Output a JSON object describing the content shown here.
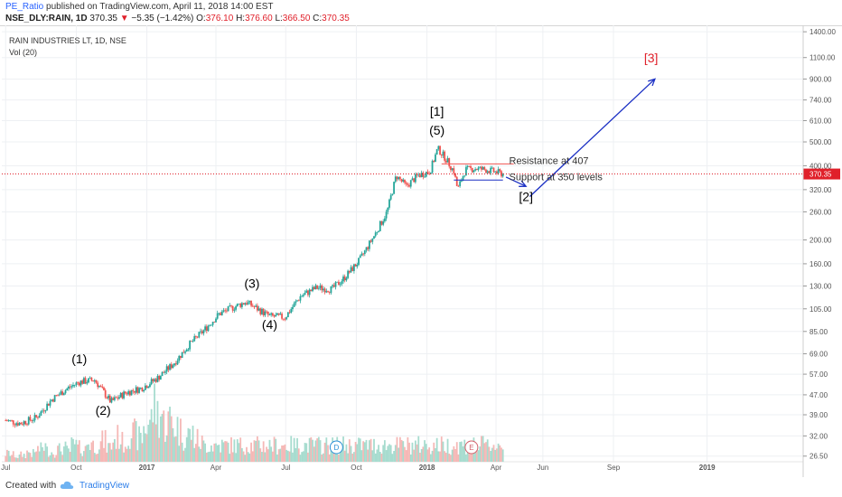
{
  "header": {
    "author": "PE_Ratio",
    "published": "published on TradingView.com, April 11, 2018 14:00 EST",
    "symbol": "NSE_DLY:RAIN, 1D",
    "last": "370.35",
    "change": "−5.35 (−1.42%)",
    "o_label": "O:",
    "o_val": "376.10",
    "h_label": "H:",
    "h_val": "376.60",
    "l_label": "L:",
    "l_val": "366.50",
    "c_label": "C:",
    "c_val": "370.35"
  },
  "legend": {
    "name": "RAIN INDUSTRIES LT, 1D, NSE",
    "volume": "Vol (20)"
  },
  "footer": {
    "created": "Created with",
    "brand": "TradingView"
  },
  "colors": {
    "up": "#26a69a",
    "down": "#ef5350",
    "arrow": "#1a2fc4",
    "label3": "#e0202a",
    "resistance": "#ef5350",
    "support": "#1a2fc4"
  },
  "chart_data": {
    "type": "line",
    "scale": "log",
    "y_ticks": [
      "1400.00",
      "1100.00",
      "900.00",
      "740.00",
      "610.00",
      "500.00",
      "400.00",
      "320.00",
      "260.00",
      "200.00",
      "160.00",
      "130.00",
      "105.00",
      "85.00",
      "69.00",
      "57.00",
      "47.00",
      "39.00",
      "32.00",
      "26.50"
    ],
    "x_ticks": [
      "Jul",
      "Oct",
      "2017",
      "Apr",
      "Jul",
      "Oct",
      "2018",
      "Apr",
      "Jun",
      "Sep",
      "2019"
    ],
    "last_price_label": "370.35",
    "price_path": [
      [
        "2016-07-01",
        37
      ],
      [
        "2016-07-20",
        36
      ],
      [
        "2016-08-10",
        38
      ],
      [
        "2016-08-30",
        45
      ],
      [
        "2016-09-20",
        50
      ],
      [
        "2016-10-05",
        53
      ],
      [
        "2016-10-25",
        54
      ],
      [
        "2016-11-15",
        44
      ],
      [
        "2016-12-05",
        48
      ],
      [
        "2016-12-25",
        50
      ],
      [
        "2017-01-15",
        55
      ],
      [
        "2017-02-05",
        63
      ],
      [
        "2017-02-25",
        75
      ],
      [
        "2017-03-15",
        85
      ],
      [
        "2017-04-05",
        100
      ],
      [
        "2017-04-25",
        107
      ],
      [
        "2017-05-10",
        112
      ],
      [
        "2017-05-25",
        105
      ],
      [
        "2017-06-10",
        98
      ],
      [
        "2017-06-30",
        97
      ],
      [
        "2017-07-20",
        118
      ],
      [
        "2017-08-10",
        128
      ],
      [
        "2017-08-30",
        126
      ],
      [
        "2017-09-15",
        140
      ],
      [
        "2017-10-05",
        165
      ],
      [
        "2017-10-25",
        210
      ],
      [
        "2017-11-10",
        260
      ],
      [
        "2017-11-22",
        365
      ],
      [
        "2017-12-05",
        330
      ],
      [
        "2017-12-20",
        365
      ],
      [
        "2018-01-05",
        380
      ],
      [
        "2018-01-15",
        470
      ],
      [
        "2018-01-25",
        430
      ],
      [
        "2018-02-05",
        380
      ],
      [
        "2018-02-10",
        320
      ],
      [
        "2018-02-20",
        385
      ],
      [
        "2018-03-05",
        390
      ],
      [
        "2018-03-20",
        385
      ],
      [
        "2018-04-11",
        370
      ]
    ],
    "volume_profile": [
      6,
      5,
      4,
      5,
      7,
      6,
      9,
      11,
      8,
      7,
      9,
      10,
      8,
      12,
      10,
      9,
      14,
      12,
      13,
      15,
      11,
      16,
      18,
      14,
      22,
      20,
      17,
      25,
      30,
      40,
      35,
      28,
      30,
      26,
      22,
      18,
      20,
      16,
      14,
      12
    ],
    "annotations": [
      {
        "text": "(1)",
        "date": "2016-10-05",
        "price": 63,
        "color": "#000000"
      },
      {
        "text": "(2)",
        "date": "2016-11-05",
        "price": 39,
        "color": "#000000"
      },
      {
        "text": "(3)",
        "date": "2017-05-18",
        "price": 128,
        "color": "#000000"
      },
      {
        "text": "(4)",
        "date": "2017-06-10",
        "price": 87,
        "color": "#000000"
      },
      {
        "text": "[1]",
        "date": "2018-01-14",
        "price": 640,
        "color": "#000000"
      },
      {
        "text": "(5)",
        "date": "2018-01-14",
        "price": 535,
        "color": "#000000"
      },
      {
        "text": "[2]",
        "date": "2018-05-10",
        "price": 288,
        "color": "#000000"
      },
      {
        "text": "[3]",
        "date": "2018-10-20",
        "price": 1050,
        "color": "#e0202a"
      },
      {
        "text": "Resistance at 407",
        "date": "2018-04-18",
        "price": 407,
        "color": "#333333"
      },
      {
        "text": "Support at 350 levels",
        "date": "2018-04-18",
        "price": 350,
        "color": "#333333"
      }
    ],
    "resistance": {
      "price": 407,
      "from": "2018-01-20",
      "to": "2018-04-10"
    },
    "support": {
      "price": 350,
      "from": "2018-02-05",
      "to": "2018-04-10"
    },
    "arrows": [
      {
        "from": [
          "2018-04-14",
          360
        ],
        "to": [
          "2018-05-10",
          330
        ]
      },
      {
        "from": [
          "2018-05-15",
          300
        ],
        "to": [
          "2018-10-25",
          900
        ]
      }
    ],
    "event_markers": [
      {
        "text": "D",
        "date": "2017-09-05",
        "color": "#2b8fd6"
      },
      {
        "text": "E",
        "date": "2018-02-28",
        "color": "#d2606a"
      }
    ]
  }
}
